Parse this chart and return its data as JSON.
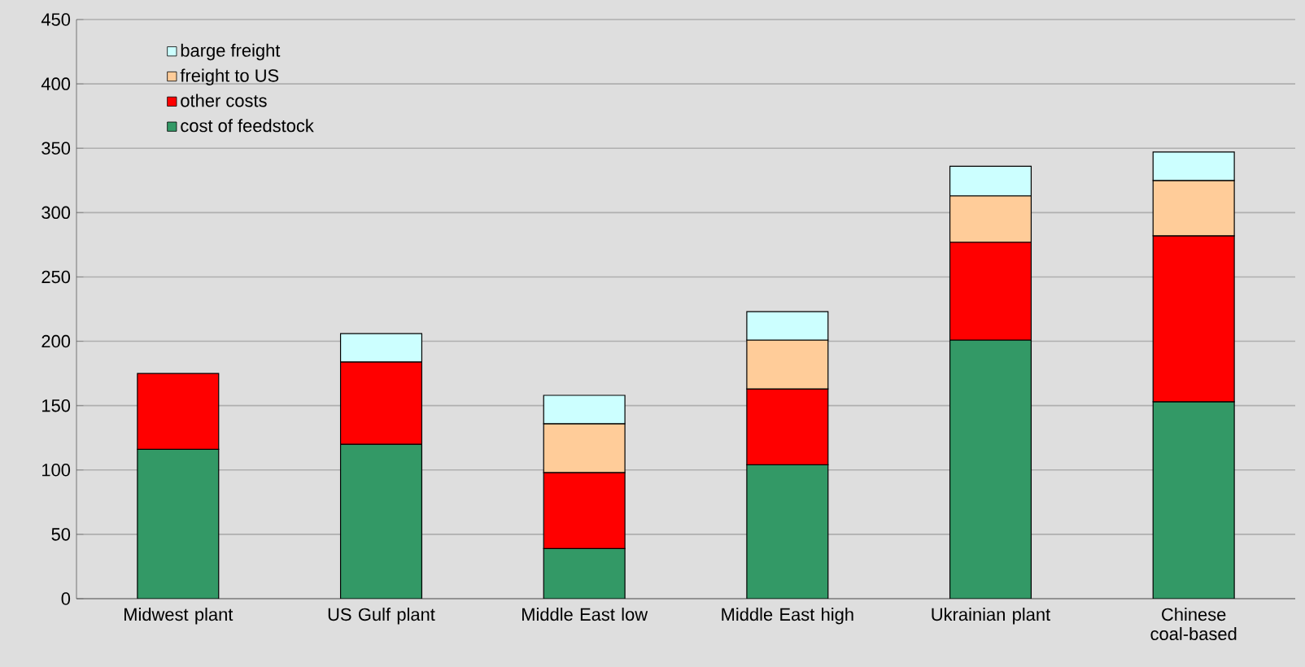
{
  "chart_data": {
    "type": "bar",
    "stacked": true,
    "categories": [
      "Midwest plant",
      "US Gulf plant",
      "Middle East low",
      "Middle East high",
      "Ukrainian plant",
      "Chinese coal-based"
    ],
    "series": [
      {
        "name": "cost of feedstock",
        "color": "#339966",
        "values": [
          116,
          120,
          39,
          104,
          201,
          153
        ]
      },
      {
        "name": "other costs",
        "color": "#ff0000",
        "values": [
          59,
          64,
          59,
          59,
          76,
          129
        ]
      },
      {
        "name": "freight to US",
        "color": "#ffcc99",
        "values": [
          null,
          null,
          38,
          38,
          36,
          43
        ]
      },
      {
        "name": "barge freight",
        "color": "#ccffff",
        "values": [
          null,
          22,
          22,
          22,
          23,
          22
        ]
      }
    ],
    "ylim": [
      0,
      450
    ],
    "yticks": [
      0,
      50,
      100,
      150,
      200,
      250,
      300,
      350,
      400,
      450
    ],
    "grid": "y",
    "legend": "top left"
  }
}
